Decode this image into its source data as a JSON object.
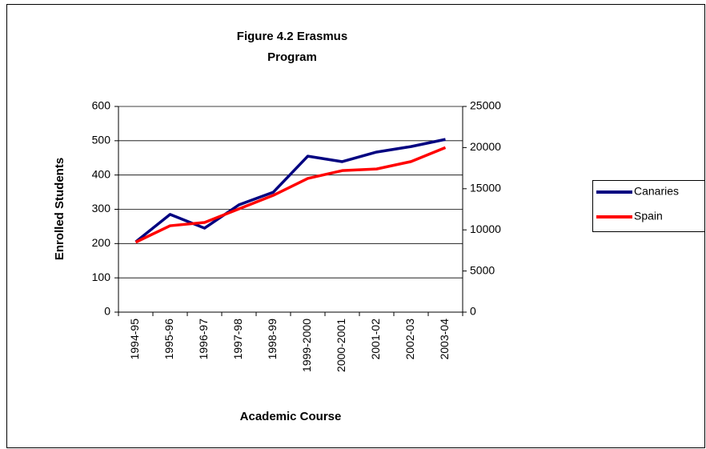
{
  "chart_data": {
    "type": "line",
    "title": "Figure 4.2  Erasmus Program",
    "title_lines": [
      "Figure 4.2  Erasmus",
      "Program"
    ],
    "xlabel": "Academic Course",
    "ylabel": "Enrolled Students",
    "categories": [
      "1994-95",
      "1995-96",
      "1996-97",
      "1997-98",
      "1998-99",
      "1999-2000",
      "2000-2001",
      "2001-02",
      "2002-03",
      "2003-04"
    ],
    "series": [
      {
        "name": "Canaries",
        "color": "#000080",
        "values": [
          205,
          285,
          245,
          313,
          350,
          455,
          439,
          467,
          483,
          504
        ]
      },
      {
        "name": "Spain",
        "color": "#ff0000",
        "axis": "y2",
        "values": [
          8500,
          10500,
          10900,
          12550,
          14200,
          16250,
          17200,
          17400,
          18300,
          20000
        ]
      }
    ],
    "ylim": [
      0,
      600
    ],
    "yticks": [
      0,
      100,
      200,
      300,
      400,
      500,
      600
    ],
    "y2lim": [
      0,
      25000
    ],
    "y2ticks": [
      0,
      5000,
      10000,
      15000,
      20000,
      25000
    ],
    "grid": true,
    "legend": "right"
  }
}
